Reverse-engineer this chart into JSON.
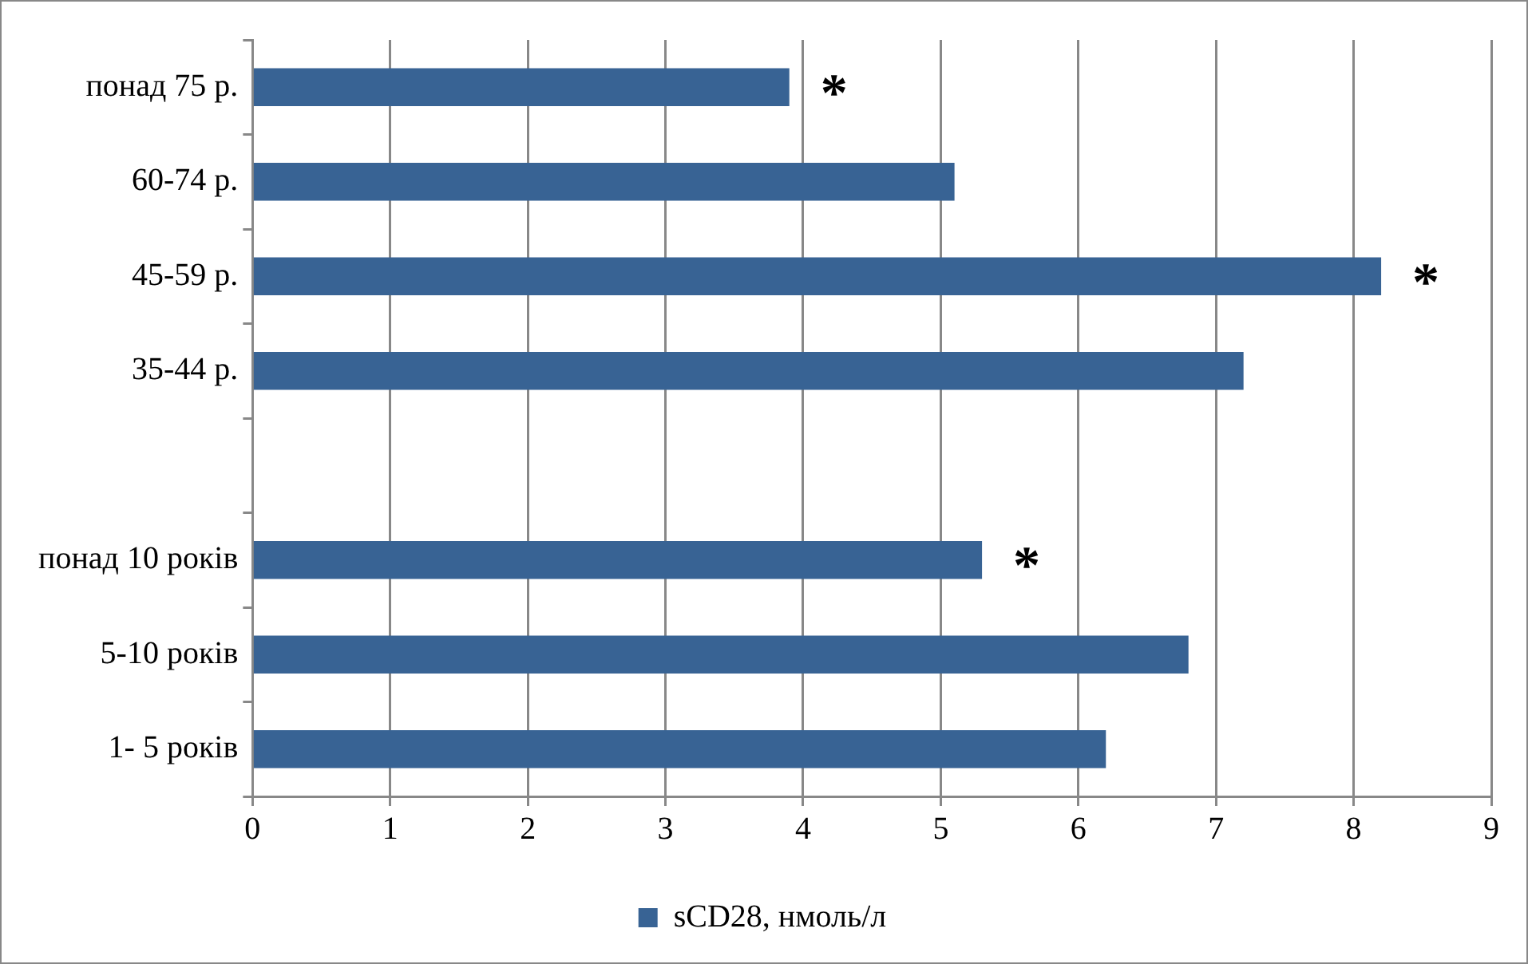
{
  "chart_data": {
    "type": "bar",
    "orientation": "horizontal",
    "categories": [
      "понад 75 р.",
      "60-74 р.",
      "45-59 р.",
      "35-44 р.",
      null,
      "понад 10 років",
      "5-10 років",
      "1- 5 років"
    ],
    "series": [
      {
        "name": "sCD28, нмоль/л",
        "color": "#386394",
        "values": [
          3.9,
          5.1,
          8.2,
          7.2,
          null,
          5.3,
          6.8,
          6.2
        ]
      }
    ],
    "xlim": [
      0,
      9
    ],
    "xticks": [
      0,
      1,
      2,
      3,
      4,
      5,
      6,
      7,
      8,
      9
    ],
    "grid": "x",
    "legend": "bottom",
    "annotations": [
      {
        "text": "*",
        "x": 3.9,
        "y": "понад 75 р."
      },
      {
        "text": "*",
        "x": 8.2,
        "y": "45-59 р."
      },
      {
        "text": "*",
        "x": 5.3,
        "y": "понад 10 років"
      }
    ]
  }
}
